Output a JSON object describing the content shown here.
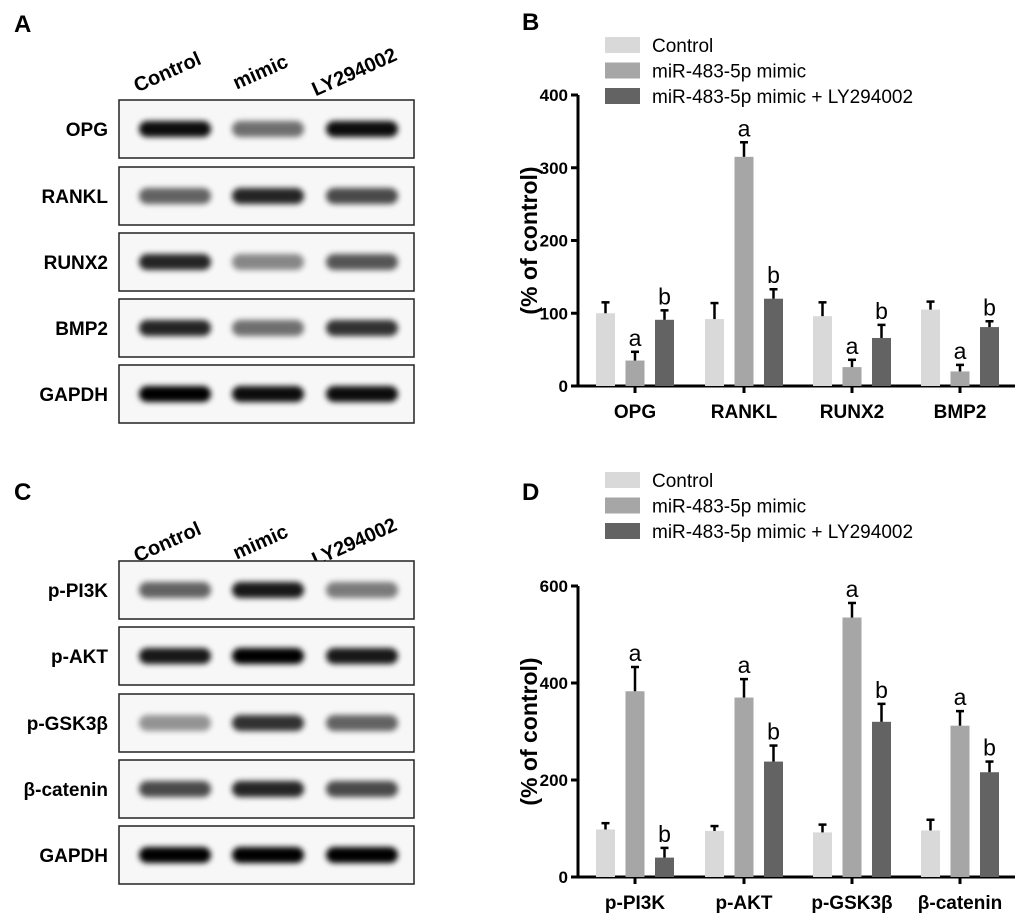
{
  "panels": {
    "a": "A",
    "b": "B",
    "c": "C",
    "d": "D"
  },
  "blot_a": {
    "lanes": [
      "Control",
      "mimic",
      "LY294002"
    ],
    "rows": [
      {
        "label": "OPG",
        "intensity": [
          0.95,
          0.55,
          0.95
        ]
      },
      {
        "label": "RANKL",
        "intensity": [
          0.6,
          0.85,
          0.7
        ]
      },
      {
        "label": "RUNX2",
        "intensity": [
          0.85,
          0.45,
          0.65
        ]
      },
      {
        "label": "BMP2",
        "intensity": [
          0.85,
          0.55,
          0.8
        ]
      },
      {
        "label": "GAPDH",
        "intensity": [
          1.0,
          0.95,
          0.95
        ]
      }
    ]
  },
  "blot_c": {
    "lanes": [
      "Control",
      "mimic",
      "LY294002"
    ],
    "rows": [
      {
        "label": "p-PI3K",
        "intensity": [
          0.6,
          0.9,
          0.5
        ]
      },
      {
        "label": "p-AKT",
        "intensity": [
          0.9,
          1.0,
          0.9
        ]
      },
      {
        "label": "p-GSK3β",
        "intensity": [
          0.4,
          0.8,
          0.6
        ]
      },
      {
        "label": "β-catenin",
        "intensity": [
          0.7,
          0.85,
          0.7
        ]
      },
      {
        "label": "GAPDH",
        "intensity": [
          1.0,
          1.0,
          1.0
        ]
      }
    ]
  },
  "chart_data": [
    {
      "type": "bar",
      "panel": "B",
      "ylabel": "(% of control)",
      "ylim": [
        0,
        400
      ],
      "yticks": [
        "0",
        "100",
        "200",
        "300",
        "400"
      ],
      "categories": [
        "OPG",
        "RANKL",
        "RUNX2",
        "BMP2"
      ],
      "legend_position": "top",
      "series": [
        {
          "name": "Control",
          "color": "#d9d9d9",
          "values": [
            100,
            92,
            96,
            105
          ],
          "errors": [
            15,
            22,
            19,
            11
          ],
          "annotations": [
            "",
            "",
            "",
            ""
          ]
        },
        {
          "name": "miR-483-5p mimic",
          "color": "#a6a6a6",
          "values": [
            35,
            315,
            26,
            20
          ],
          "errors": [
            12,
            20,
            10,
            9
          ],
          "annotations": [
            "a",
            "a",
            "a",
            "a"
          ]
        },
        {
          "name": "miR-483-5p mimic + LY294002",
          "color": "#636363",
          "values": [
            91,
            120,
            66,
            81
          ],
          "errors": [
            13,
            13,
            18,
            8
          ],
          "annotations": [
            "b",
            "b",
            "b",
            "b"
          ]
        }
      ]
    },
    {
      "type": "bar",
      "panel": "D",
      "ylabel": "(% of control)",
      "ylim": [
        0,
        600
      ],
      "yticks": [
        "0",
        "200",
        "400",
        "600"
      ],
      "categories": [
        "p-PI3K",
        "p-AKT",
        "p-GSK3β",
        "β-catenin"
      ],
      "legend_position": "top",
      "series": [
        {
          "name": "Control",
          "color": "#d9d9d9",
          "values": [
            98,
            95,
            92,
            96
          ],
          "errors": [
            13,
            10,
            16,
            22
          ],
          "annotations": [
            "",
            "",
            "",
            ""
          ]
        },
        {
          "name": "miR-483-5p mimic",
          "color": "#a6a6a6",
          "values": [
            383,
            370,
            535,
            312
          ],
          "errors": [
            50,
            38,
            30,
            30
          ],
          "annotations": [
            "a",
            "a",
            "a",
            "a"
          ]
        },
        {
          "name": "miR-483-5p mimic + LY294002",
          "color": "#636363",
          "values": [
            40,
            238,
            320,
            216
          ],
          "errors": [
            20,
            33,
            37,
            22
          ],
          "annotations": [
            "b",
            "b",
            "b",
            "b"
          ]
        }
      ]
    }
  ]
}
